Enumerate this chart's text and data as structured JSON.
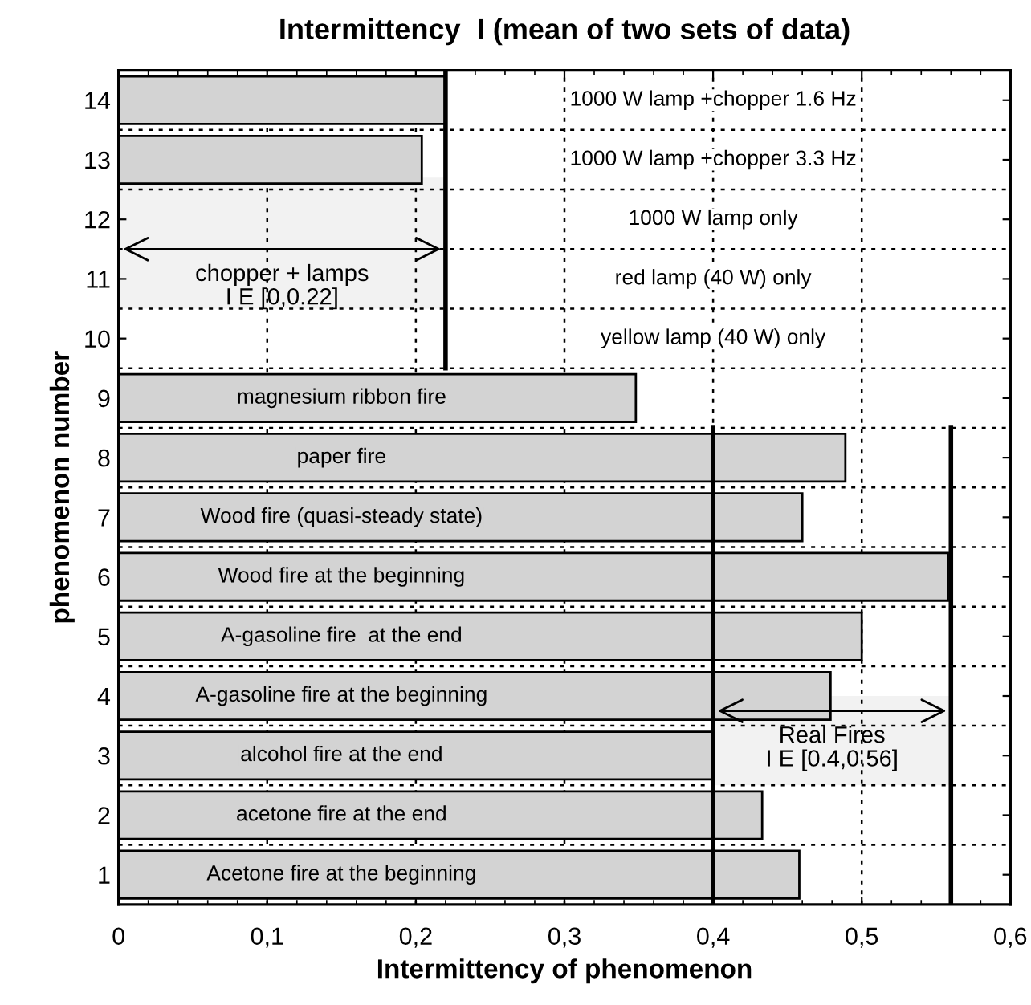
{
  "chart_data": {
    "type": "bar",
    "orientation": "horizontal",
    "title": "Intermittency  I (mean of two sets of data)",
    "xlabel": "Intermittency of phenomenon",
    "ylabel": "phenomenon number",
    "categories": [
      "14",
      "13",
      "12",
      "11",
      "10",
      "9",
      "8",
      "7",
      "6",
      "5",
      "4",
      "3",
      "2",
      "1"
    ],
    "values": [
      0.22,
      0.204,
      null,
      null,
      null,
      0.348,
      0.489,
      0.46,
      0.558,
      0.5,
      0.479,
      0.4,
      0.433,
      0.458
    ],
    "color": "#d3d3d3",
    "xlim": [
      0,
      0.6
    ],
    "xticks": [
      {
        "value": 0,
        "label": "0"
      },
      {
        "value": 0.1,
        "label": "0,1"
      },
      {
        "value": 0.2,
        "label": "0,2"
      },
      {
        "value": 0.3,
        "label": "0,3"
      },
      {
        "value": 0.4,
        "label": "0,4"
      },
      {
        "value": 0.5,
        "label": "0,5"
      },
      {
        "value": 0.6,
        "label": "0,6"
      }
    ],
    "grid": true,
    "ref_lines": [
      {
        "axis": "x",
        "value": 0.22,
        "color": "#000000"
      },
      {
        "axis": "x",
        "value": 0.4,
        "color": "#000000"
      },
      {
        "axis": "x",
        "value": 0.56,
        "color": "#000000"
      }
    ],
    "bands": [
      {
        "axis": "x",
        "from": 0,
        "to": 0.22,
        "label": "chopper + lamps\nI E [0,0.22]",
        "color": "#f2f2f2"
      },
      {
        "axis": "x",
        "from": 0.4,
        "to": 0.56,
        "label": "Real Fires\nI E [0.4,0.56]",
        "color": "#f2f2f2"
      }
    ],
    "annotations": [
      "1000 W lamp +chopper 1.6 Hz",
      "1000 W lamp +chopper 3.3 Hz",
      "1000 W lamp only",
      "red lamp (40 W) only",
      "yellow lamp (40 W) only",
      "magnesium ribbon fire",
      "paper fire",
      "Wood fire (quasi-steady state)",
      "Wood fire at the beginning",
      "A-gasoline fire  at the end",
      "A-gasoline fire at the beginning",
      "alcohol fire at the end",
      "acetone fire at the end",
      "Acetone fire at the beginning"
    ]
  }
}
